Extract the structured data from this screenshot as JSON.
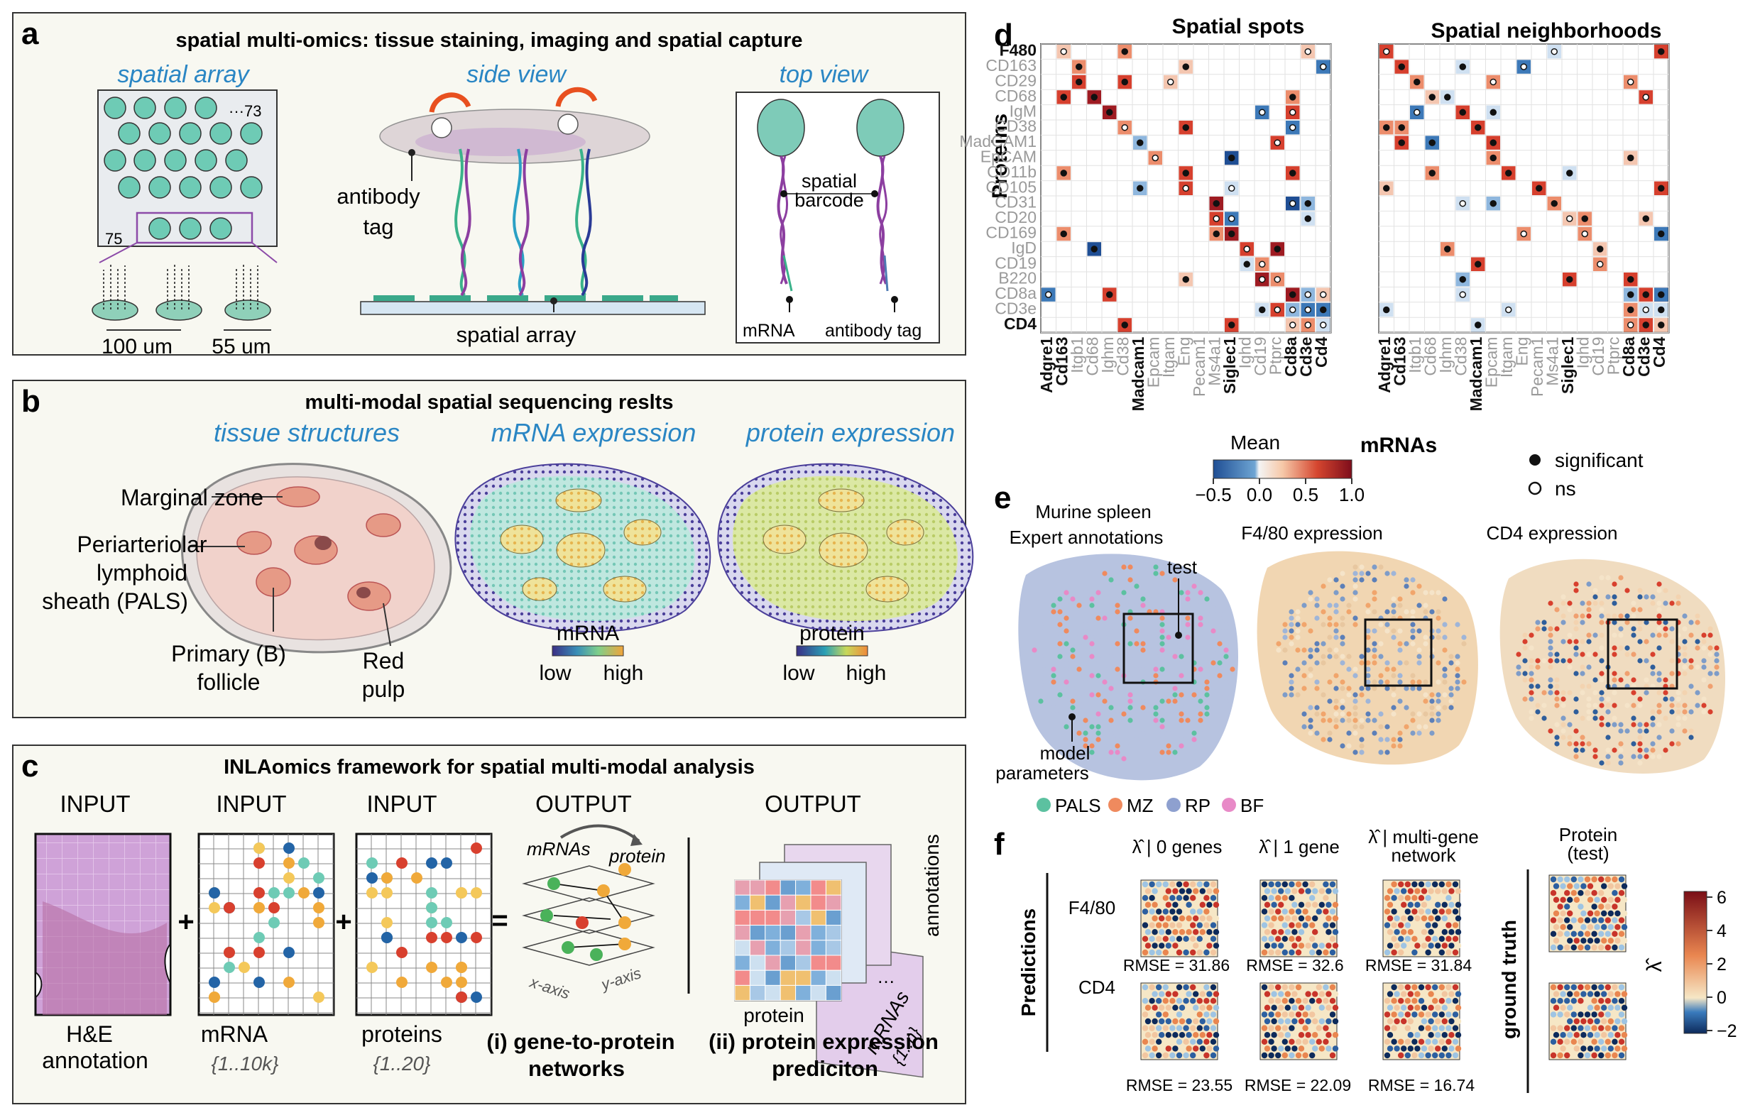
{
  "panel_a": {
    "letter": "a",
    "title": "spatial multi-omics: tissue staining, imaging and spatial capture",
    "sub_array": "spatial array",
    "sub_side": "side view",
    "sub_top": "top view",
    "spot_count_top": "···73",
    "spot_count_side": "75",
    "dist_spot": "100 um",
    "dist_diameter": "55 um",
    "antibody_tag_label": "antibody\ntag",
    "spatial_array_label": "spatial array",
    "spatial_barcode_label": "spatial\nbarcode",
    "mrna_label": "mRNA",
    "antibody_tag_top_label": "antibody tag"
  },
  "panel_b": {
    "letter": "b",
    "title": "multi-modal spatial sequencing reslts",
    "sub_tissue": "tissue structures",
    "sub_mrna": "mRNA expression",
    "sub_protein": "protein expression",
    "labels": [
      "Marginal zone",
      "Periarteriolar",
      "lymphoid",
      "sheath (PALS)",
      "Primary (B)",
      "follicle",
      "Red",
      "pulp"
    ],
    "mrna_legend_title": "mRNA",
    "protein_legend_title": "protein",
    "legend_low": "low",
    "legend_high": "high"
  },
  "panel_c": {
    "letter": "c",
    "title": "INLAomics framework for spatial multi-modal analysis",
    "headers": [
      "INPUT",
      "INPUT",
      "INPUT",
      "OUTPUT",
      "OUTPUT"
    ],
    "he_label": [
      "H&E",
      "annotation"
    ],
    "mrna_label": "mRNA",
    "mrna_range": "{1..10k}",
    "proteins_label": "proteins",
    "proteins_range": "{1..20}",
    "net_mrnas": "mRNAs",
    "net_protein": "protein",
    "net_x": "x-axis",
    "net_y": "y-axis",
    "output1": [
      "(i) gene-to-protein",
      "networks"
    ],
    "output2": [
      "(ii) protein expression",
      "prediciton"
    ],
    "stack_protein": "protein",
    "stack_mrnas": "mRNAs",
    "stack_range": "{1..n}",
    "stack_annotations": "annotations",
    "stack_dots": "…"
  },
  "panel_d": {
    "letter": "d",
    "title_left": "Spatial spots",
    "title_right": "Spatial neighborhoods",
    "ylabel": "Proteins",
    "xlabel": "mRNAs",
    "proteins": [
      "F480",
      "CD163",
      "CD29",
      "CD68",
      "IgM",
      "CD38",
      "MadCAM1",
      "EpCAM",
      "CD11b",
      "CD105",
      "CD31",
      "CD20",
      "CD169",
      "IgD",
      "CD19",
      "B220",
      "CD8a",
      "CD3e",
      "CD4"
    ],
    "proteins_bold": [
      "F480",
      "CD4"
    ],
    "mrnas": [
      "Adgre1",
      "Cd163",
      "Itgb1",
      "Cd68",
      "Ighm",
      "Cd38",
      "Madcam1",
      "Epcam",
      "Itgam",
      "Eng",
      "Pecam1",
      "Ms4a1",
      "Siglec1",
      "Ighd",
      "Cd19",
      "Ptprc",
      "Cd8a",
      "Cd3e",
      "Cd4"
    ],
    "mrnas_bold": [
      "Adgre1",
      "Cd163",
      "Madcam1",
      "Siglec1",
      "Cd8a",
      "Cd3e",
      "Cd4"
    ],
    "colorbar_title": "Mean",
    "colorbar_ticks": [
      "−0.5",
      "0.0",
      "0.5",
      "1.0"
    ],
    "legend_significant": "significant",
    "legend_ns": "ns"
  },
  "panel_e": {
    "letter": "e",
    "title1": [
      "Murine spleen",
      "Expert annotations"
    ],
    "title2": "F4/80 expression",
    "title3": "CD4 expression",
    "test_label": "test",
    "model_label": [
      "model",
      "parameters"
    ],
    "legend": [
      {
        "label": "PALS",
        "color": "#5cc1a0"
      },
      {
        "label": "MZ",
        "color": "#ef8a5e"
      },
      {
        "label": "RP",
        "color": "#8ea0cf"
      },
      {
        "label": "BF",
        "color": "#e88ac7"
      }
    ]
  },
  "panel_f": {
    "letter": "f",
    "col_titles": [
      "λ̂ | 0 genes",
      "λ̂ | 1 gene",
      "λ̂ | multi-gene",
      "network"
    ],
    "col_protein": [
      "Protein",
      "(test)"
    ],
    "row_labels": [
      "F4/80",
      "CD4"
    ],
    "predictions": "Predictions",
    "ground_truth": "ground truth",
    "rmse_f480": [
      "RMSE = 31.86",
      "RMSE = 32.6",
      "RMSE = 31.84"
    ],
    "rmse_cd4": [
      "RMSE = 23.55",
      "RMSE = 22.09",
      "RMSE = 16.74"
    ],
    "colorbar_ticks": [
      "6",
      "4",
      "2",
      "0",
      "−2"
    ],
    "colorbar_label": "λ̂"
  },
  "colors": {
    "panel_bg": "#f8f8f1",
    "accent_blue": "#2a86c4",
    "spot_teal": "#6ecbb5",
    "heat_red": "#c8342a",
    "heat_blue": "#2364a6"
  }
}
